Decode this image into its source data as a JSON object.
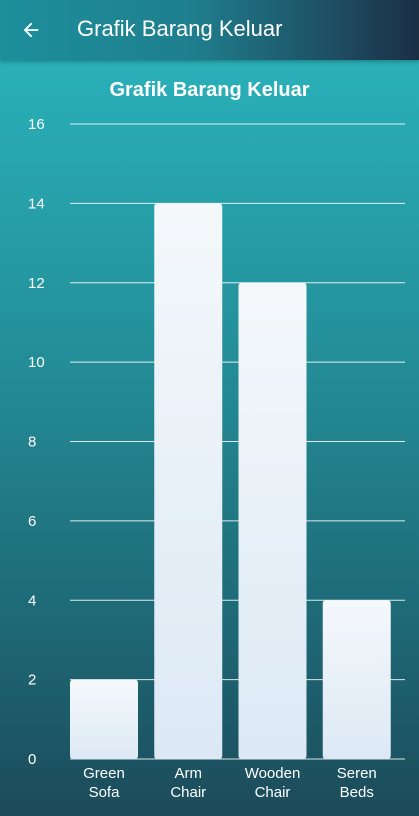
{
  "appbar": {
    "title": "Grafik Barang Keluar",
    "back_icon": "arrow-left-icon"
  },
  "colors": {
    "appbar_start": "#1c8f9b",
    "appbar_end": "#1b2f45",
    "bar_fill": "#eaf3f9",
    "gridline": "#ffffff"
  },
  "chart_data": {
    "type": "bar",
    "title": "Grafik Barang Keluar",
    "categories": [
      [
        "Green",
        "Sofa"
      ],
      [
        "Arm",
        "Chair"
      ],
      [
        "Wooden",
        "Chair"
      ],
      [
        "Seren",
        "Beds"
      ]
    ],
    "values": [
      2,
      14,
      12,
      4
    ],
    "ylim": [
      0,
      16
    ],
    "yticks": [
      0,
      2,
      4,
      6,
      8,
      10,
      12,
      14,
      16
    ],
    "grid": true,
    "xlabel": "",
    "ylabel": ""
  }
}
